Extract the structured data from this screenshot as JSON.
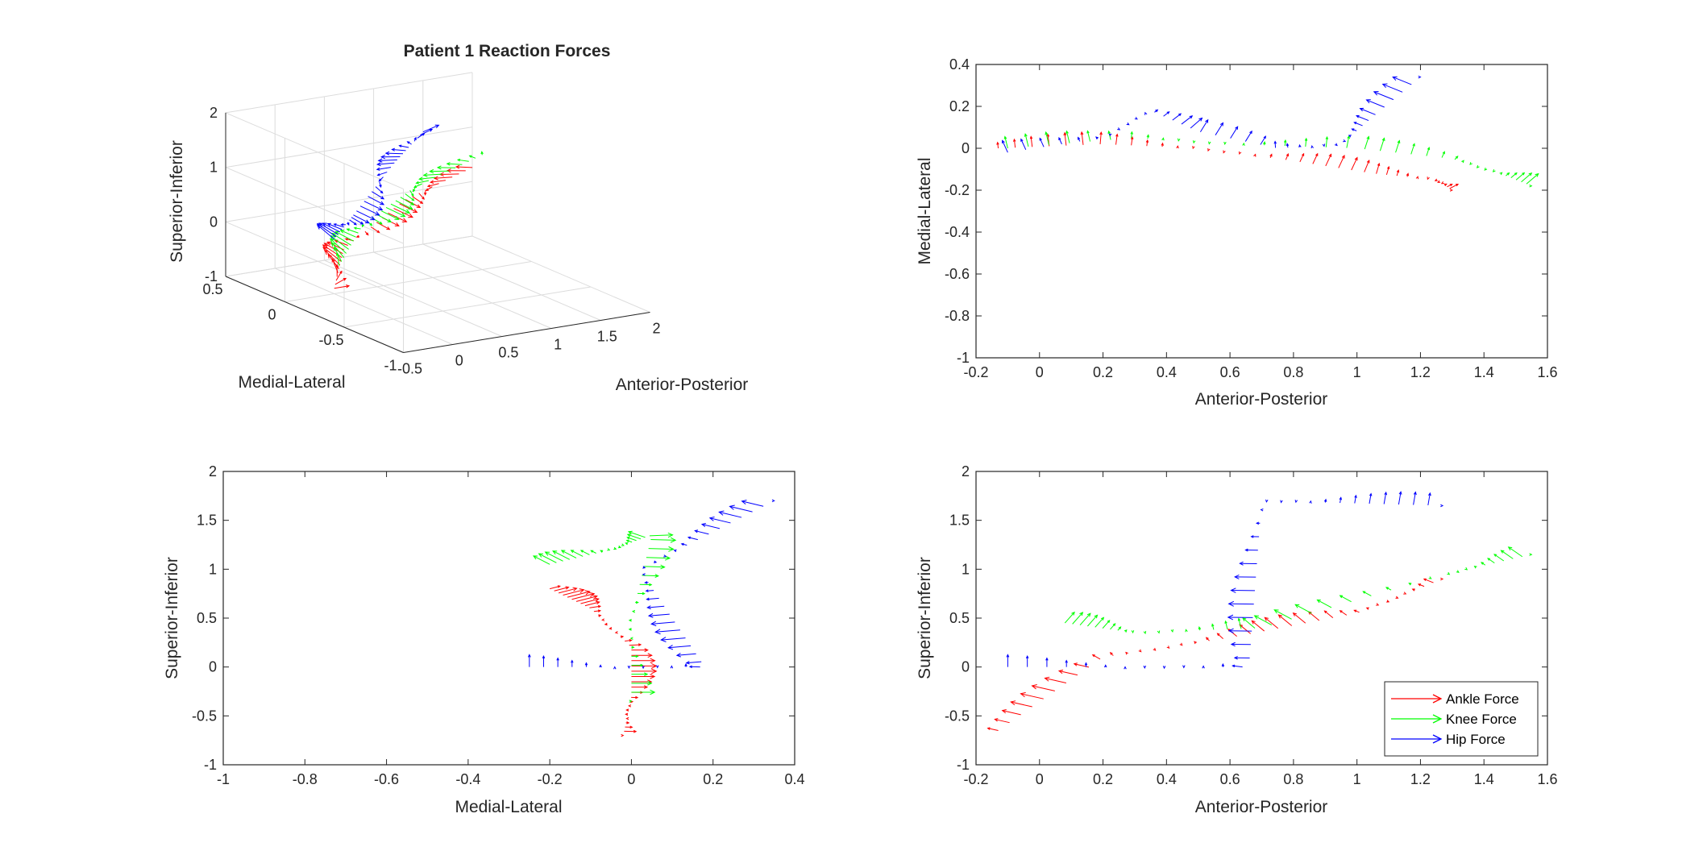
{
  "chart_data": [
    {
      "type": "quiver3d",
      "title": "Patient 1 Reaction Forces",
      "xlabel": "Anterior-Posterior",
      "ylabel": "Medial-Lateral",
      "zlabel": "Superior-Inferior",
      "xticks": [
        "-0.5",
        "0",
        "0.5",
        "1",
        "1.5",
        "2"
      ],
      "yticks": [
        "0.5",
        "0",
        "-0.5",
        "-1"
      ],
      "zticks": [
        "2",
        "1",
        "0",
        "-1"
      ],
      "xlim": [
        -0.5,
        2
      ],
      "ylim": [
        -1,
        0.5
      ],
      "zlim": [
        -1,
        2
      ],
      "grid": true,
      "series": [
        {
          "color": "#ff0000"
        },
        {
          "color": "#00ff00"
        },
        {
          "color": "#0000ff"
        }
      ]
    },
    {
      "type": "quiver",
      "title": "",
      "xlabel": "Anterior-Posterior",
      "ylabel": "Medial-Lateral",
      "xlim": [
        -0.2,
        1.6
      ],
      "ylim": [
        -1,
        0.4
      ],
      "xticks": [
        "-0.2",
        "0",
        "0.2",
        "0.4",
        "0.6",
        "0.8",
        "1",
        "1.2",
        "1.4",
        "1.6"
      ],
      "yticks": [
        "0.4",
        "0.2",
        "0",
        "-0.2",
        "-0.4",
        "-0.6",
        "-0.8",
        "-1"
      ],
      "series": [
        {
          "color": "#ff0000",
          "points": [
            [
              -0.13,
              0.0
            ],
            [
              0.2,
              0.02
            ],
            [
              0.5,
              0.0
            ],
            [
              0.8,
              -0.06
            ],
            [
              1.05,
              -0.12
            ],
            [
              1.25,
              -0.15
            ],
            [
              1.3,
              -0.2
            ]
          ]
        },
        {
          "color": "#00ff00",
          "points": [
            [
              -0.1,
              0.0
            ],
            [
              0.3,
              0.05
            ],
            [
              0.6,
              0.02
            ],
            [
              1.0,
              0.0
            ],
            [
              1.3,
              -0.05
            ],
            [
              1.45,
              -0.12
            ],
            [
              1.55,
              -0.18
            ]
          ]
        },
        {
          "color": "#0000ff",
          "points": [
            [
              -0.1,
              -0.02
            ],
            [
              0.2,
              0.05
            ],
            [
              0.35,
              0.18
            ],
            [
              0.5,
              0.08
            ],
            [
              0.75,
              0.0
            ],
            [
              0.95,
              0.02
            ],
            [
              1.05,
              0.15
            ],
            [
              1.2,
              0.34
            ]
          ]
        }
      ]
    },
    {
      "type": "quiver",
      "title": "",
      "xlabel": "Medial-Lateral",
      "ylabel": "Superior-Inferior",
      "xlim": [
        -1,
        0.4
      ],
      "ylim": [
        -1,
        2
      ],
      "xticks": [
        "-1",
        "-0.8",
        "-0.6",
        "-0.4",
        "-0.2",
        "0",
        "0.2",
        "0.4"
      ],
      "yticks": [
        "2",
        "1.5",
        "1",
        "0.5",
        "0",
        "-0.5",
        "-1"
      ],
      "series": [
        {
          "color": "#ff0000",
          "points": [
            [
              -0.2,
              0.8
            ],
            [
              -0.1,
              0.6
            ],
            [
              0.0,
              0.2
            ],
            [
              0.0,
              -0.3
            ],
            [
              -0.02,
              -0.7
            ]
          ]
        },
        {
          "color": "#00ff00",
          "points": [
            [
              -0.2,
              1.05
            ],
            [
              -0.05,
              1.2
            ],
            [
              0.05,
              1.35
            ],
            [
              0.0,
              0.5
            ],
            [
              0.0,
              -0.35
            ]
          ]
        },
        {
          "color": "#0000ff",
          "points": [
            [
              -0.25,
              0.0
            ],
            [
              0.18,
              0.0
            ],
            [
              0.02,
              1.0
            ],
            [
              0.35,
              1.7
            ]
          ]
        }
      ]
    },
    {
      "type": "quiver",
      "title": "",
      "xlabel": "Anterior-Posterior",
      "ylabel": "Superior-Inferior",
      "xlim": [
        -0.2,
        1.6
      ],
      "ylim": [
        -1,
        2
      ],
      "xticks": [
        "-0.2",
        "0",
        "0.2",
        "0.4",
        "0.6",
        "0.8",
        "1",
        "1.2",
        "1.4",
        "1.6"
      ],
      "yticks": [
        "2",
        "1.5",
        "1",
        "0.5",
        "0",
        "-0.5",
        "-1"
      ],
      "legend": [
        "Ankle Force",
        "Knee Force",
        "Hip Force"
      ],
      "legend_position": "bottom-right",
      "series": [
        {
          "name": "Ankle Force",
          "color": "#ff0000",
          "points": [
            [
              -0.13,
              -0.65
            ],
            [
              0.2,
              0.1
            ],
            [
              0.6,
              0.3
            ],
            [
              1.0,
              0.55
            ],
            [
              1.27,
              0.9
            ]
          ]
        },
        {
          "name": "Knee Force",
          "color": "#00ff00",
          "points": [
            [
              0.08,
              0.45
            ],
            [
              0.3,
              0.35
            ],
            [
              0.7,
              0.4
            ],
            [
              1.28,
              0.95
            ],
            [
              1.55,
              1.15
            ]
          ]
        },
        {
          "name": "Hip Force",
          "color": "#0000ff",
          "points": [
            [
              -0.1,
              0.0
            ],
            [
              0.66,
              0.0
            ],
            [
              0.7,
              1.7
            ],
            [
              1.27,
              1.65
            ]
          ]
        }
      ]
    }
  ]
}
